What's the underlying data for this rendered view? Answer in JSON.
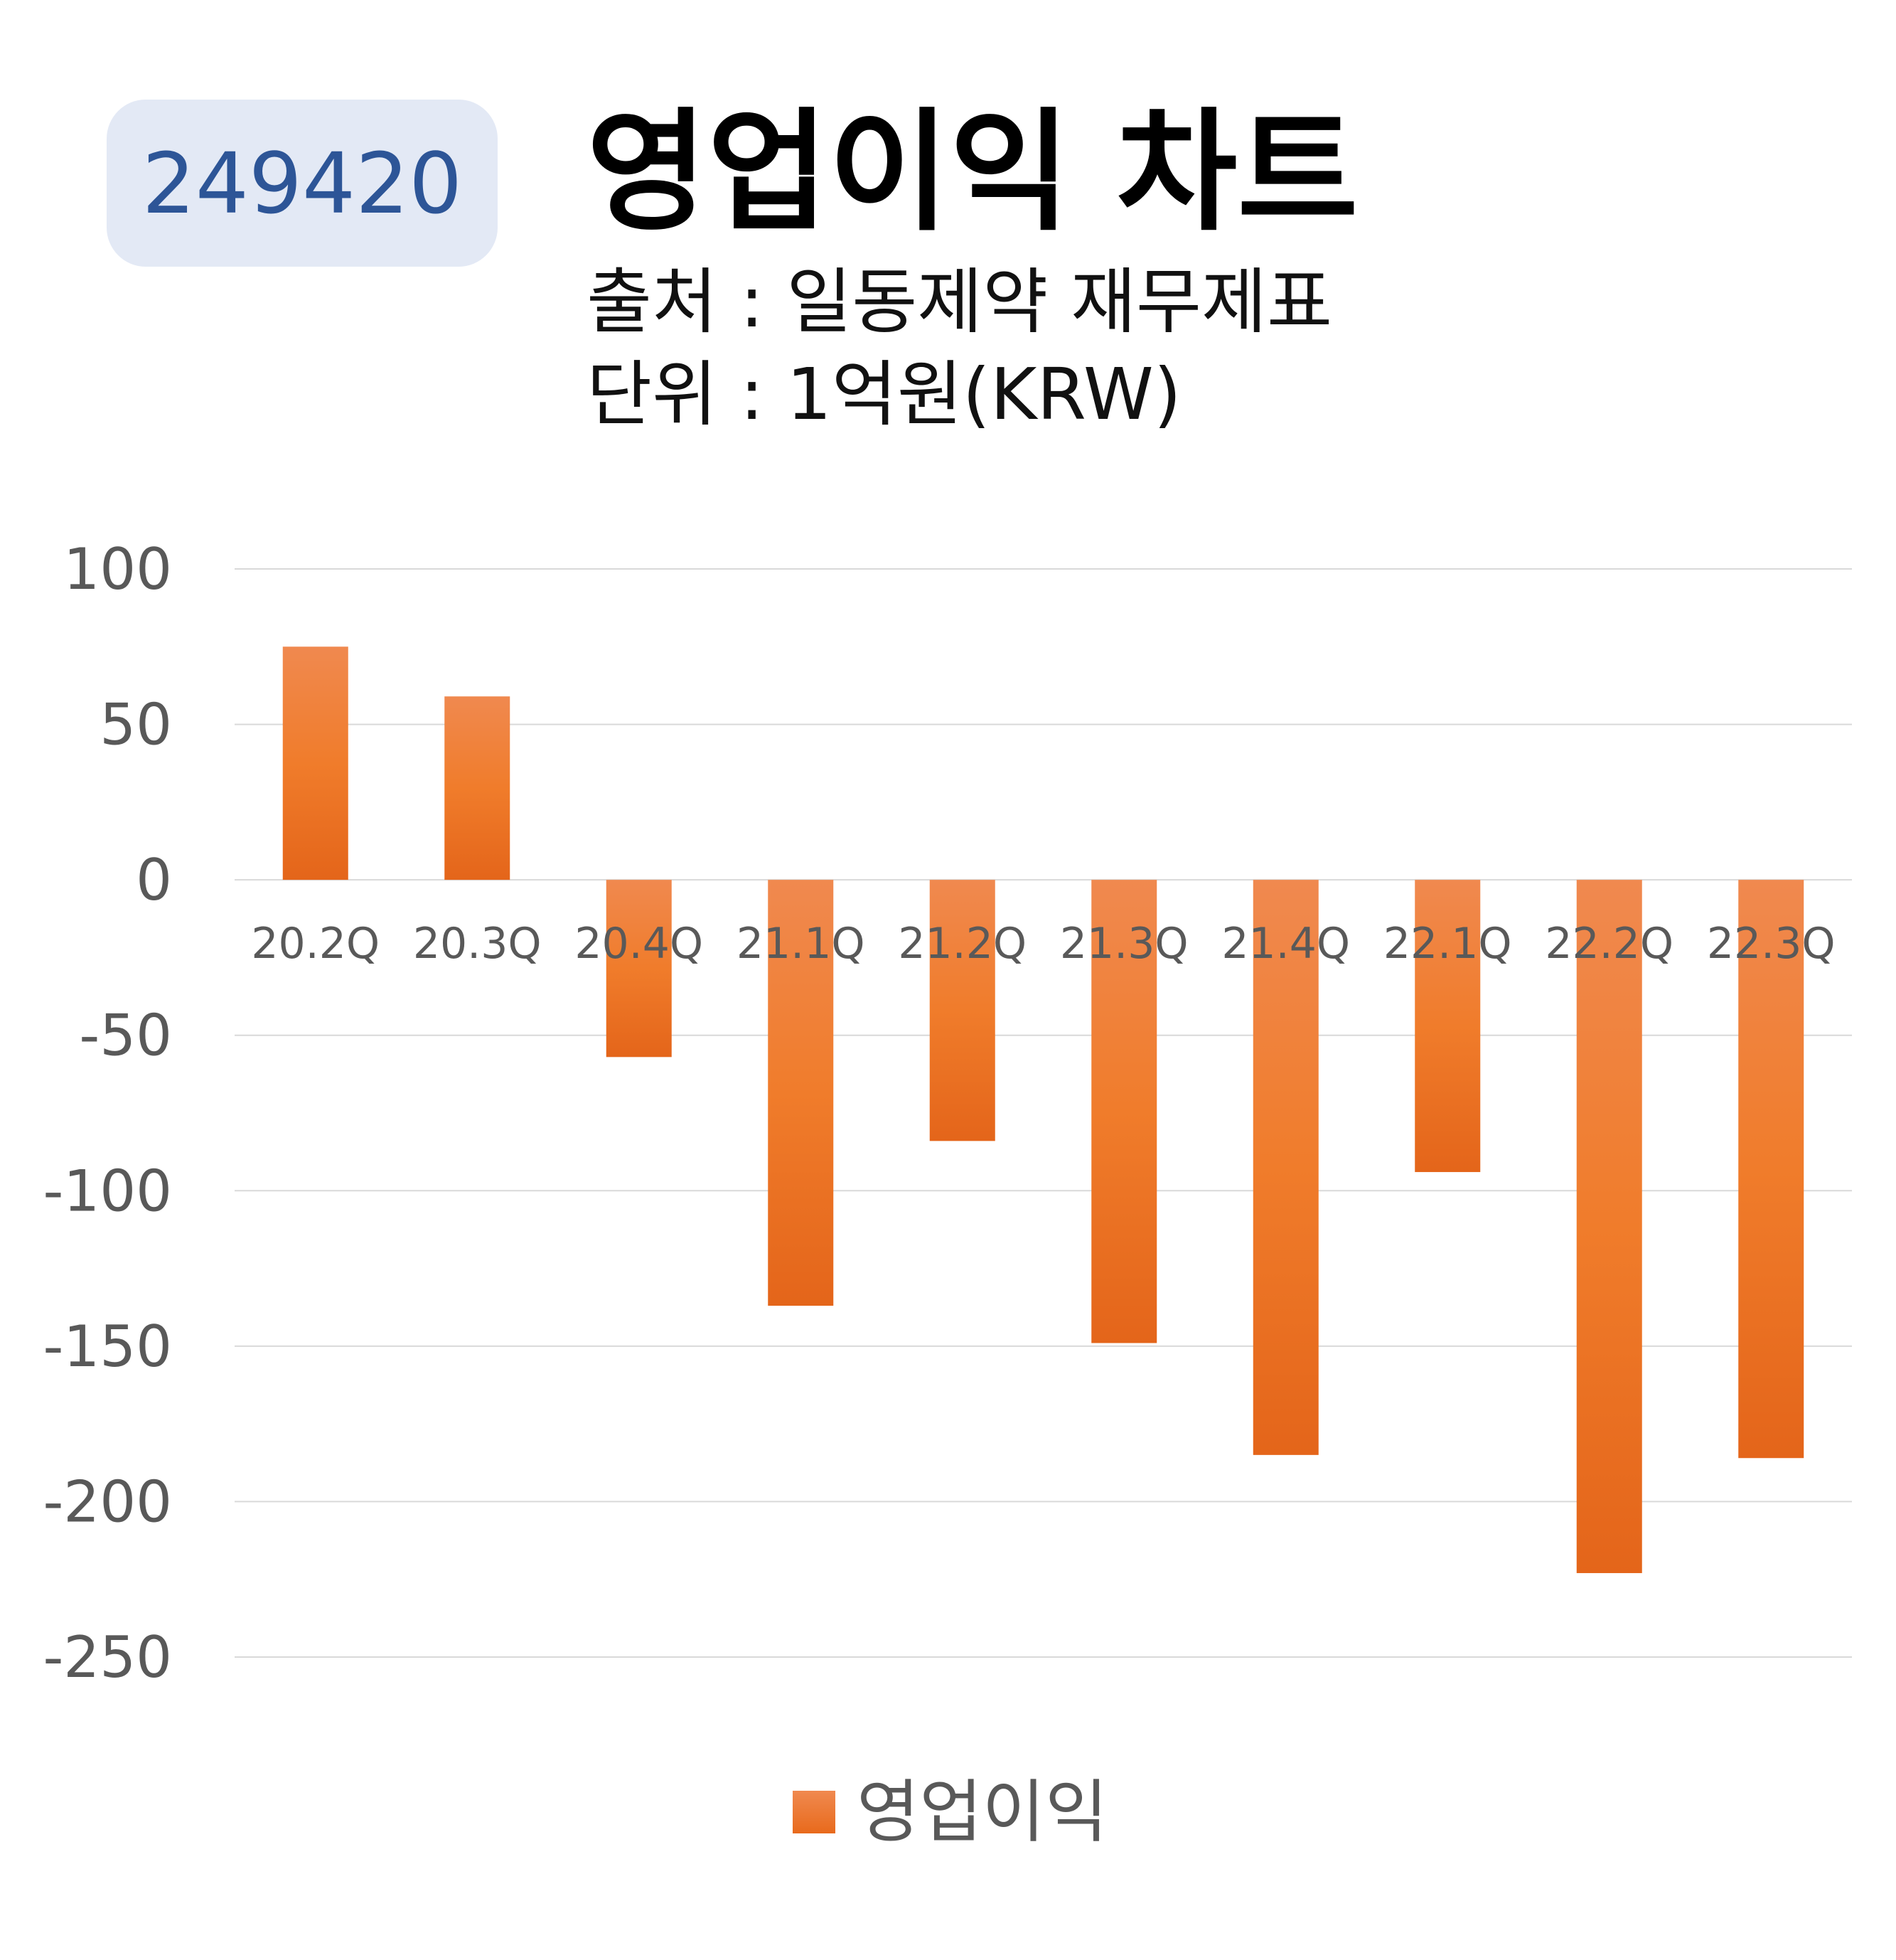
{
  "ticker": "249420",
  "header": {
    "title": "영업이익 차트",
    "source": "출처 : 일동제약 재무제표",
    "unit": "단위 : 1억원(KRW)"
  },
  "colors": {
    "bar_top": "#f0894f",
    "bar_mid": "#f07c2b",
    "bar_bottom": "#e4651a",
    "grid": "#d9d9d9",
    "tick_text": "#595959",
    "badge_bg": "#e3e9f5",
    "badge_text": "#2d5597"
  },
  "chart_data": {
    "type": "bar",
    "categories": [
      "20.2Q",
      "20.3Q",
      "20.4Q",
      "21.1Q",
      "21.2Q",
      "21.3Q",
      "21.4Q",
      "22.1Q",
      "22.2Q",
      "22.3Q"
    ],
    "series": [
      {
        "name": "영업이익",
        "values": [
          75,
          59,
          -57,
          -137,
          -84,
          -149,
          -185,
          -94,
          -223,
          -186
        ]
      }
    ],
    "ylim": [
      -250,
      100
    ],
    "yticks": [
      100,
      50,
      0,
      -50,
      -100,
      -150,
      -200,
      -250
    ],
    "grid": true,
    "legend": "bottom"
  }
}
